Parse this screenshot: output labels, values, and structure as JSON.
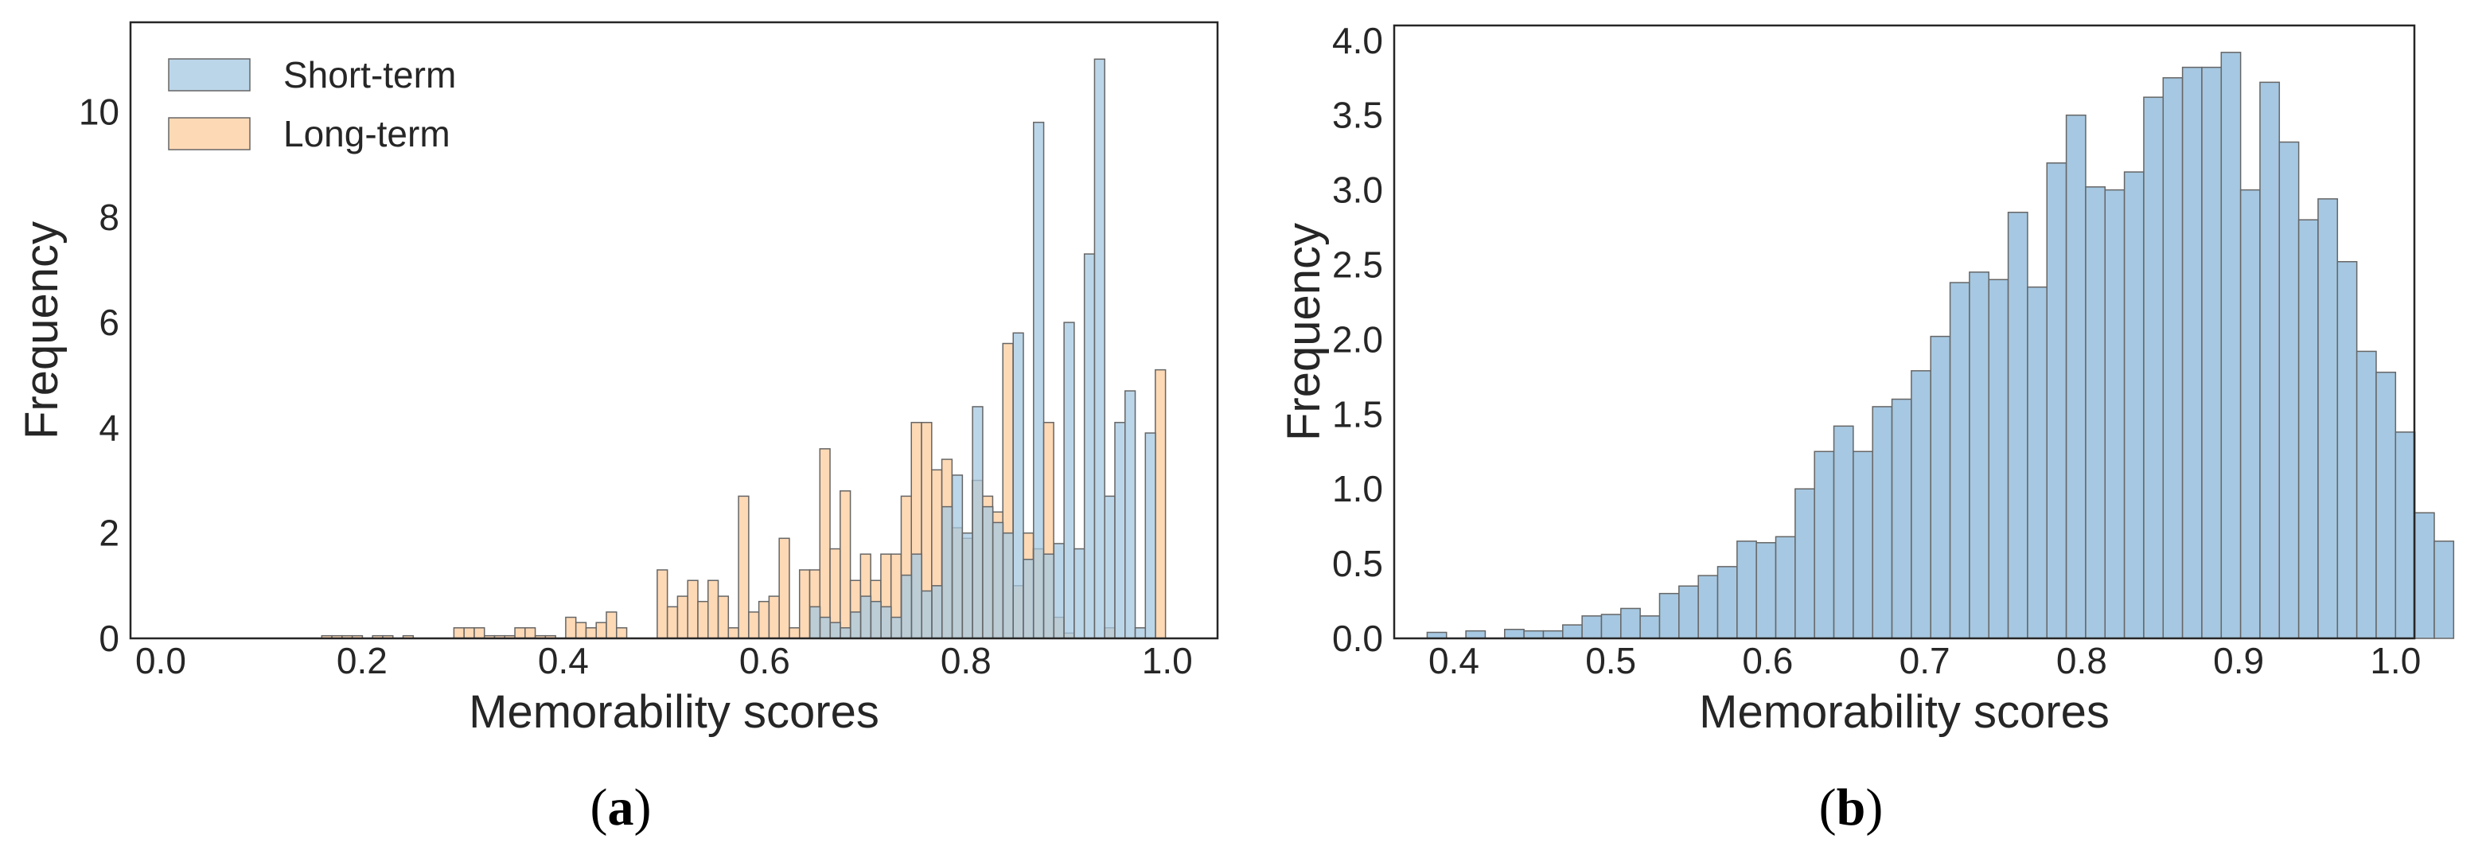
{
  "colors": {
    "short_term": "#a6c8e2",
    "long_term": "#fdcc9c",
    "edge": "#666666",
    "frame": "#262626"
  },
  "chart_data": [
    {
      "id": "a",
      "type": "histogram",
      "caption": "a",
      "xlabel": "Memorability scores",
      "ylabel": "Frequency",
      "xlim": [
        -0.03,
        1.05
      ],
      "ylim": [
        0,
        11.7
      ],
      "xticks": [
        0.0,
        0.2,
        0.4,
        0.6,
        0.8,
        1.0
      ],
      "xtick_labels": [
        "0.0",
        "0.2",
        "0.4",
        "0.6",
        "0.8",
        "1.0"
      ],
      "yticks": [
        0,
        2,
        4,
        6,
        8,
        10
      ],
      "ytick_labels": [
        "0",
        "2",
        "4",
        "6",
        "8",
        "10"
      ],
      "grid": false,
      "legend_position": "top-left",
      "series": [
        {
          "name": "Short-term",
          "color_key": "short_term",
          "bin_start": 0.645,
          "bin_width": 0.0101,
          "values": [
            0.6,
            0.4,
            0.3,
            0.2,
            0.5,
            0.8,
            0.7,
            0.6,
            0.4,
            1.2,
            1.6,
            0.9,
            1.0,
            2.5,
            3.1,
            2.0,
            4.4,
            2.5,
            2.2,
            2.0,
            5.8,
            1.5,
            9.8,
            1.6,
            1.8,
            6.0,
            1.7,
            7.3,
            11.0,
            2.7,
            4.1,
            4.7,
            0.2,
            3.9
          ]
        },
        {
          "name": "Long-term",
          "color_key": "long_term",
          "bin_start": 0.16,
          "bin_width": 0.0101,
          "values": [
            0.05,
            0.05,
            0.05,
            0.05,
            0,
            0.05,
            0.05,
            0,
            0.05,
            0,
            0,
            0,
            0,
            0.2,
            0.2,
            0.2,
            0.05,
            0.05,
            0.05,
            0.2,
            0.2,
            0.05,
            0.05,
            0,
            0.4,
            0.3,
            0.2,
            0.3,
            0.5,
            0.2,
            0,
            0,
            0,
            1.3,
            0.6,
            0.8,
            1.1,
            0.7,
            1.1,
            0.8,
            0.2,
            2.7,
            0.5,
            0.7,
            0.8,
            1.9,
            0.2,
            1.3,
            1.3,
            3.6,
            1.7,
            2.8,
            1.1,
            1.6,
            1.1,
            1.6,
            1.6,
            2.7,
            4.1,
            4.1,
            3.2,
            3.4,
            2.1,
            1.9,
            3.0,
            2.7,
            2.4,
            5.6,
            1.0,
            2.0,
            1.7,
            4.1,
            0.4,
            0.1,
            0,
            0,
            0,
            0.2,
            0,
            0,
            0,
            0,
            5.1
          ]
        }
      ]
    },
    {
      "id": "b",
      "type": "histogram",
      "caption": "b",
      "xlabel": "Memorability scores",
      "ylabel": "Frequency",
      "xlim": [
        0.362,
        1.012
      ],
      "ylim": [
        0,
        4.1
      ],
      "xticks": [
        0.4,
        0.5,
        0.6,
        0.7,
        0.8,
        0.9,
        1.0
      ],
      "xtick_labels": [
        "0.4",
        "0.5",
        "0.6",
        "0.7",
        "0.8",
        "0.9",
        "1.0"
      ],
      "yticks": [
        0.0,
        0.5,
        1.0,
        1.5,
        2.0,
        2.5,
        3.0,
        3.5,
        4.0
      ],
      "ytick_labels": [
        "0.0",
        "0.5",
        "1.0",
        "1.5",
        "2.0",
        "2.5",
        "3.0",
        "3.5",
        "4.0"
      ],
      "grid": false,
      "series": [
        {
          "color_key": "short_term",
          "bin_start": 0.383,
          "bin_width": 0.01234,
          "values": [
            0.04,
            0,
            0.05,
            0,
            0.06,
            0.05,
            0.05,
            0.09,
            0.15,
            0.16,
            0.2,
            0.15,
            0.3,
            0.35,
            0.42,
            0.48,
            0.65,
            0.64,
            0.68,
            1.0,
            1.25,
            1.42,
            1.25,
            1.55,
            1.6,
            1.79,
            2.02,
            2.38,
            2.45,
            2.4,
            2.85,
            2.35,
            3.18,
            3.5,
            3.02,
            3.0,
            3.12,
            3.62,
            3.75,
            3.82,
            3.82,
            3.92,
            3.0,
            3.72,
            3.32,
            2.8,
            2.94,
            2.52,
            1.92,
            1.78,
            1.38,
            0.84,
            0.65
          ]
        }
      ]
    }
  ]
}
